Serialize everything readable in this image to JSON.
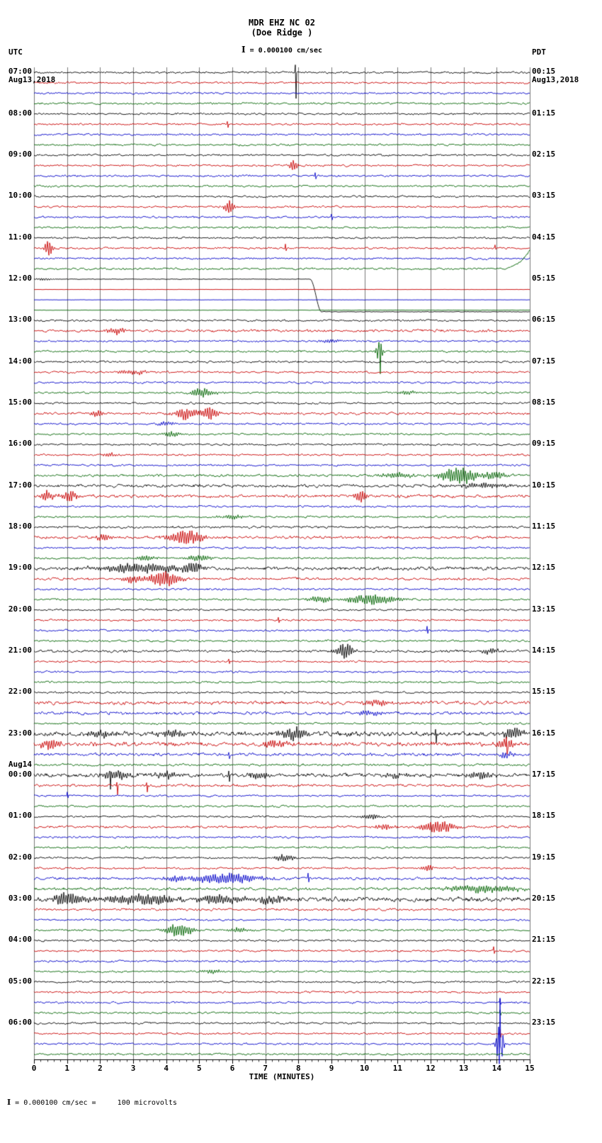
{
  "title": "MDR EHZ NC 02",
  "subtitle": "(Doe Ridge )",
  "scale_label": " = 0.000100 cm/sec",
  "header_left": {
    "tz": "UTC",
    "date": "Aug13,2018"
  },
  "header_right": {
    "tz": "PDT",
    "date": "Aug13,2018"
  },
  "xaxis": {
    "label": "TIME (MINUTES)",
    "ticks": [
      "0",
      "1",
      "2",
      "3",
      "4",
      "5",
      "6",
      "7",
      "8",
      "9",
      "10",
      "11",
      "12",
      "13",
      "14",
      "15"
    ]
  },
  "footer_note": " = 0.000100 cm/sec =     100 microvolts",
  "chart_data": {
    "type": "line",
    "kind": "seismogram-helicorder",
    "num_rows": 96,
    "minutes_per_row": 15,
    "rows_per_hour": 4,
    "trace_colors": [
      "#000000",
      "#c80000",
      "#0000c8",
      "#006400"
    ],
    "grid_color": "#3c3c3c",
    "base_noise": 1.0,
    "noise_overrides": {
      "20": 0.3,
      "21": 0.15,
      "22": 0.15,
      "23": 0.15,
      "25": 1.3,
      "33": 1.2,
      "39": 1.3,
      "40": 1.5,
      "41": 1.5,
      "44": 1.2,
      "45": 1.4,
      "48": 1.7,
      "49": 1.3,
      "56": 1.3,
      "61": 1.7,
      "62": 1.5,
      "64": 2.3,
      "65": 2.1,
      "66": 1.5,
      "67": 1.2,
      "68": 1.9,
      "69": 1.3,
      "73": 1.2,
      "78": 1.4,
      "79": 1.4,
      "80": 2.2,
      "81": 1.2
    },
    "left_labels": [
      {
        "row": 0,
        "text": "07:00"
      },
      {
        "row": 4,
        "text": "08:00"
      },
      {
        "row": 8,
        "text": "09:00"
      },
      {
        "row": 12,
        "text": "10:00"
      },
      {
        "row": 16,
        "text": "11:00"
      },
      {
        "row": 20,
        "text": "12:00"
      },
      {
        "row": 24,
        "text": "13:00"
      },
      {
        "row": 28,
        "text": "14:00"
      },
      {
        "row": 32,
        "text": "15:00"
      },
      {
        "row": 36,
        "text": "16:00"
      },
      {
        "row": 40,
        "text": "17:00"
      },
      {
        "row": 44,
        "text": "18:00"
      },
      {
        "row": 48,
        "text": "19:00"
      },
      {
        "row": 52,
        "text": "20:00"
      },
      {
        "row": 56,
        "text": "21:00"
      },
      {
        "row": 60,
        "text": "22:00"
      },
      {
        "row": 64,
        "text": "23:00"
      },
      {
        "row": 68,
        "text": "00:00"
      },
      {
        "row": 72,
        "text": "01:00"
      },
      {
        "row": 76,
        "text": "02:00"
      },
      {
        "row": 80,
        "text": "03:00"
      },
      {
        "row": 84,
        "text": "04:00"
      },
      {
        "row": 88,
        "text": "05:00"
      },
      {
        "row": 92,
        "text": "06:00"
      }
    ],
    "date_mark": {
      "row": 68,
      "text": "Aug14"
    },
    "right_labels": [
      {
        "row": 0,
        "text": "00:15"
      },
      {
        "row": 4,
        "text": "01:15"
      },
      {
        "row": 8,
        "text": "02:15"
      },
      {
        "row": 12,
        "text": "03:15"
      },
      {
        "row": 16,
        "text": "04:15"
      },
      {
        "row": 20,
        "text": "05:15"
      },
      {
        "row": 24,
        "text": "06:15"
      },
      {
        "row": 28,
        "text": "07:15"
      },
      {
        "row": 32,
        "text": "08:15"
      },
      {
        "row": 36,
        "text": "09:15"
      },
      {
        "row": 40,
        "text": "10:15"
      },
      {
        "row": 44,
        "text": "11:15"
      },
      {
        "row": 48,
        "text": "12:15"
      },
      {
        "row": 52,
        "text": "13:15"
      },
      {
        "row": 56,
        "text": "14:15"
      },
      {
        "row": 60,
        "text": "15:15"
      },
      {
        "row": 64,
        "text": "16:15"
      },
      {
        "row": 68,
        "text": "17:15"
      },
      {
        "row": 72,
        "text": "18:15"
      },
      {
        "row": 76,
        "text": "19:15"
      },
      {
        "row": 80,
        "text": "20:15"
      },
      {
        "row": 84,
        "text": "21:15"
      },
      {
        "row": 88,
        "text": "22:15"
      },
      {
        "row": 92,
        "text": "23:15"
      }
    ],
    "events": [
      {
        "r": 0,
        "t": "s",
        "m": 7.9,
        "u": 10,
        "d": 38
      },
      {
        "r": 5,
        "t": "s",
        "m": 5.85,
        "u": 4,
        "d": 4
      },
      {
        "r": 9,
        "t": "b",
        "m": 7.85,
        "a": 9,
        "w": 0.12
      },
      {
        "r": 10,
        "t": "s",
        "m": 8.5,
        "u": 5,
        "d": 4
      },
      {
        "r": 13,
        "t": "b",
        "m": 5.9,
        "a": 11,
        "w": 0.15
      },
      {
        "r": 14,
        "t": "s",
        "m": 9.0,
        "u": 4,
        "d": 3
      },
      {
        "r": 17,
        "t": "b",
        "m": 0.45,
        "a": 13,
        "w": 0.12
      },
      {
        "r": 17,
        "t": "s",
        "m": 7.6,
        "u": 5,
        "d": 4
      },
      {
        "r": 17,
        "t": "s",
        "m": 13.95,
        "u": 4,
        "d": 3
      },
      {
        "r": 19,
        "t": "rise",
        "m": 14.2,
        "a": 26
      },
      {
        "r": 20,
        "t": "b",
        "m": 0.3,
        "a": 2,
        "w": 0.3
      },
      {
        "r": 20,
        "t": "st",
        "m": 8.35,
        "a": 46
      },
      {
        "r": 25,
        "t": "b",
        "m": 2.5,
        "a": 5,
        "w": 0.3
      },
      {
        "r": 26,
        "t": "b",
        "m": 9.0,
        "a": 3,
        "w": 0.3
      },
      {
        "r": 27,
        "t": "b",
        "m": 10.45,
        "a": 16,
        "w": 0.1
      },
      {
        "r": 27,
        "t": "s",
        "m": 10.45,
        "u": 10,
        "d": 28
      },
      {
        "r": 29,
        "t": "b",
        "m": 3.0,
        "a": 3,
        "w": 0.5
      },
      {
        "r": 31,
        "t": "b",
        "m": 5.1,
        "a": 7,
        "w": 0.35
      },
      {
        "r": 31,
        "t": "b",
        "m": 11.3,
        "a": 3,
        "w": 0.3
      },
      {
        "r": 33,
        "t": "b",
        "m": 1.9,
        "a": 5,
        "w": 0.2
      },
      {
        "r": 33,
        "t": "b",
        "m": 4.6,
        "a": 9,
        "w": 0.35
      },
      {
        "r": 33,
        "t": "b",
        "m": 5.3,
        "a": 10,
        "w": 0.25
      },
      {
        "r": 34,
        "t": "b",
        "m": 4.0,
        "a": 3,
        "w": 0.3
      },
      {
        "r": 35,
        "t": "b",
        "m": 4.2,
        "a": 4,
        "w": 0.3
      },
      {
        "r": 37,
        "t": "b",
        "m": 2.3,
        "a": 3,
        "w": 0.25
      },
      {
        "r": 39,
        "t": "b",
        "m": 11.0,
        "a": 4,
        "w": 0.5
      },
      {
        "r": 39,
        "t": "b",
        "m": 12.9,
        "a": 12,
        "w": 0.6
      },
      {
        "r": 39,
        "t": "b",
        "m": 13.9,
        "a": 7,
        "w": 0.4
      },
      {
        "r": 40,
        "t": "b",
        "m": 13.6,
        "a": 4,
        "w": 0.8
      },
      {
        "r": 41,
        "t": "b",
        "m": 0.4,
        "a": 8,
        "w": 0.2
      },
      {
        "r": 41,
        "t": "b",
        "m": 1.1,
        "a": 8,
        "w": 0.25
      },
      {
        "r": 41,
        "t": "b",
        "m": 9.9,
        "a": 11,
        "w": 0.18
      },
      {
        "r": 43,
        "t": "b",
        "m": 6.0,
        "a": 3,
        "w": 0.4
      },
      {
        "r": 45,
        "t": "b",
        "m": 2.1,
        "a": 5,
        "w": 0.3
      },
      {
        "r": 45,
        "t": "b",
        "m": 4.6,
        "a": 12,
        "w": 0.5
      },
      {
        "r": 47,
        "t": "b",
        "m": 3.4,
        "a": 4,
        "w": 0.3
      },
      {
        "r": 47,
        "t": "b",
        "m": 5.0,
        "a": 5,
        "w": 0.4
      },
      {
        "r": 48,
        "t": "b",
        "m": 3.3,
        "a": 7,
        "w": 1.4
      },
      {
        "r": 48,
        "t": "b",
        "m": 4.8,
        "a": 9,
        "w": 0.3
      },
      {
        "r": 49,
        "t": "b",
        "m": 3.0,
        "a": 6,
        "w": 0.3
      },
      {
        "r": 49,
        "t": "b",
        "m": 3.9,
        "a": 12,
        "w": 0.5
      },
      {
        "r": 51,
        "t": "b",
        "m": 8.7,
        "a": 5,
        "w": 0.4
      },
      {
        "r": 51,
        "t": "b",
        "m": 10.2,
        "a": 8,
        "w": 0.8
      },
      {
        "r": 53,
        "t": "s",
        "m": 7.4,
        "u": 4,
        "d": 3
      },
      {
        "r": 54,
        "t": "s",
        "m": 11.9,
        "u": 6,
        "d": 5
      },
      {
        "r": 56,
        "t": "b",
        "m": 9.4,
        "a": 13,
        "w": 0.25
      },
      {
        "r": 56,
        "t": "b",
        "m": 13.8,
        "a": 4,
        "w": 0.3
      },
      {
        "r": 57,
        "t": "s",
        "m": 5.9,
        "u": 4,
        "d": 3
      },
      {
        "r": 61,
        "t": "b",
        "m": 10.3,
        "a": 5,
        "w": 0.4
      },
      {
        "r": 62,
        "t": "b",
        "m": 10.2,
        "a": 4,
        "w": 0.4
      },
      {
        "r": 64,
        "t": "b",
        "m": 2.0,
        "a": 5,
        "w": 0.4
      },
      {
        "r": 64,
        "t": "b",
        "m": 4.2,
        "a": 6,
        "w": 0.4
      },
      {
        "r": 64,
        "t": "b",
        "m": 7.9,
        "a": 9,
        "w": 0.4
      },
      {
        "r": 64,
        "t": "s",
        "m": 12.15,
        "u": 6,
        "d": 12
      },
      {
        "r": 64,
        "t": "b",
        "m": 14.5,
        "a": 8,
        "w": 0.3
      },
      {
        "r": 65,
        "t": "b",
        "m": 0.5,
        "a": 8,
        "w": 0.3
      },
      {
        "r": 65,
        "t": "b",
        "m": 7.3,
        "a": 5,
        "w": 0.4
      },
      {
        "r": 65,
        "t": "b",
        "m": 14.3,
        "a": 9,
        "w": 0.25
      },
      {
        "r": 65,
        "t": "s",
        "m": 14.3,
        "u": 5,
        "d": 16
      },
      {
        "r": 66,
        "t": "s",
        "m": 5.9,
        "u": 5,
        "d": 4
      },
      {
        "r": 66,
        "t": "b",
        "m": 14.3,
        "a": 6,
        "w": 0.2
      },
      {
        "r": 68,
        "t": "b",
        "m": 2.5,
        "a": 6,
        "w": 0.5
      },
      {
        "r": 68,
        "t": "s",
        "m": 2.3,
        "u": 5,
        "d": 18
      },
      {
        "r": 68,
        "t": "b",
        "m": 4.0,
        "a": 5,
        "w": 0.4
      },
      {
        "r": 68,
        "t": "s",
        "m": 5.9,
        "u": 5,
        "d": 10
      },
      {
        "r": 68,
        "t": "b",
        "m": 6.8,
        "a": 4,
        "w": 0.4
      },
      {
        "r": 68,
        "t": "b",
        "m": 11.0,
        "a": 4,
        "w": 0.4
      },
      {
        "r": 68,
        "t": "b",
        "m": 13.5,
        "a": 5,
        "w": 0.4
      },
      {
        "r": 69,
        "t": "s",
        "m": 2.5,
        "u": 4,
        "d": 14
      },
      {
        "r": 69,
        "t": "s",
        "m": 3.4,
        "u": 4,
        "d": 10
      },
      {
        "r": 70,
        "t": "s",
        "m": 1.0,
        "u": 5,
        "d": 4
      },
      {
        "r": 72,
        "t": "b",
        "m": 10.2,
        "a": 4,
        "w": 0.3
      },
      {
        "r": 73,
        "t": "b",
        "m": 10.6,
        "a": 4,
        "w": 0.3
      },
      {
        "r": 73,
        "t": "b",
        "m": 12.2,
        "a": 10,
        "w": 0.5
      },
      {
        "r": 76,
        "t": "b",
        "m": 7.6,
        "a": 5,
        "w": 0.3
      },
      {
        "r": 77,
        "t": "b",
        "m": 11.9,
        "a": 5,
        "w": 0.15
      },
      {
        "r": 78,
        "t": "b",
        "m": 4.3,
        "a": 5,
        "w": 0.3
      },
      {
        "r": 78,
        "t": "b",
        "m": 5.8,
        "a": 8,
        "w": 1.0
      },
      {
        "r": 78,
        "t": "s",
        "m": 8.3,
        "u": 6,
        "d": 5
      },
      {
        "r": 79,
        "t": "b",
        "m": 13.5,
        "a": 5,
        "w": 1.2
      },
      {
        "r": 80,
        "t": "b",
        "m": 1.0,
        "a": 9,
        "w": 0.5
      },
      {
        "r": 80,
        "t": "b",
        "m": 3.3,
        "a": 8,
        "w": 1.2
      },
      {
        "r": 80,
        "t": "b",
        "m": 5.5,
        "a": 7,
        "w": 0.8
      },
      {
        "r": 80,
        "t": "b",
        "m": 7.2,
        "a": 6,
        "w": 0.5
      },
      {
        "r": 83,
        "t": "b",
        "m": 4.4,
        "a": 10,
        "w": 0.4
      },
      {
        "r": 83,
        "t": "b",
        "m": 6.2,
        "a": 4,
        "w": 0.3
      },
      {
        "r": 85,
        "t": "s",
        "m": 13.9,
        "u": 5,
        "d": 4
      },
      {
        "r": 87,
        "t": "b",
        "m": 5.4,
        "a": 3,
        "w": 0.3
      },
      {
        "r": 90,
        "t": "s",
        "m": 14.1,
        "u": 4,
        "d": 4
      },
      {
        "r": 91,
        "t": "s",
        "m": 14.1,
        "u": 4,
        "d": 3
      },
      {
        "r": 93,
        "t": "s",
        "m": 14.1,
        "u": 6,
        "d": 5
      },
      {
        "r": 94,
        "t": "b",
        "m": 14.1,
        "a": 45,
        "w": 0.1
      },
      {
        "r": 94,
        "t": "s",
        "m": 14.1,
        "u": 80,
        "d": 30
      }
    ]
  }
}
